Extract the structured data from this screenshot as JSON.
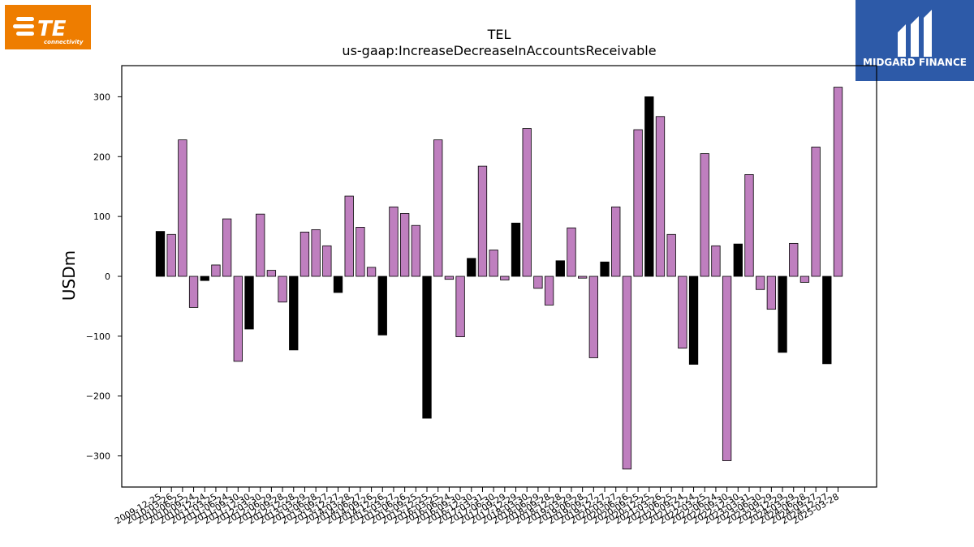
{
  "logos": {
    "left": {
      "text": "TE",
      "subtext": "connectivity",
      "bg": "#ee7d00"
    },
    "right": {
      "text": "MIDGARD FINANCE",
      "bg": "#2d5aa8"
    }
  },
  "chart_data": {
    "type": "bar",
    "title": "TEL",
    "subtitle": "us-gaap:IncreaseDecreaseInAccountsReceivable",
    "xlabel": "",
    "ylabel": "USDm",
    "ylim": [
      -352,
      352
    ],
    "yticks": [
      -300,
      -200,
      -100,
      0,
      100,
      200,
      300
    ],
    "grid": false,
    "colors": {
      "purple": "#bf7fbf",
      "black": "#000000"
    },
    "categories": [
      "2009-12-25",
      "2010-03-26",
      "2010-06-25",
      "2010-09-24",
      "2010-12-24",
      "2011-03-25",
      "2011-06-24",
      "2011-09-30",
      "2011-12-30",
      "2012-03-30",
      "2012-06-29",
      "2012-09-28",
      "2012-12-28",
      "2013-03-29",
      "2013-06-28",
      "2013-09-27",
      "2013-12-27",
      "2014-03-28",
      "2014-06-27",
      "2014-09-26",
      "2014-12-26",
      "2015-03-27",
      "2015-06-26",
      "2015-09-25",
      "2015-12-25",
      "2016-03-25",
      "2016-06-24",
      "2016-09-30",
      "2016-12-30",
      "2017-03-31",
      "2017-06-30",
      "2017-09-29",
      "2017-12-29",
      "2018-03-30",
      "2018-06-29",
      "2018-09-28",
      "2018-12-28",
      "2019-03-29",
      "2019-06-28",
      "2019-09-27",
      "2019-12-27",
      "2020-03-27",
      "2020-06-26",
      "2020-09-25",
      "2020-12-25",
      "2021-03-26",
      "2021-06-25",
      "2021-09-24",
      "2021-12-24",
      "2022-03-25",
      "2022-06-24",
      "2022-09-30",
      "2022-12-30",
      "2023-03-31",
      "2023-06-30",
      "2023-09-29",
      "2023-12-29",
      "2024-03-29",
      "2024-06-28",
      "2024-09-27",
      "2024-12-27",
      "2025-03-28"
    ],
    "values": [
      75,
      70,
      228,
      -52,
      -7,
      19,
      96,
      -142,
      -88,
      104,
      10,
      -43,
      -123,
      74,
      78,
      51,
      -27,
      134,
      82,
      15,
      -98,
      116,
      105,
      85,
      -237,
      228,
      -5,
      -101,
      30,
      184,
      44,
      -6,
      89,
      247,
      -20,
      -48,
      26,
      81,
      -3,
      -136,
      24,
      116,
      -322,
      245,
      300,
      267,
      70,
      -120,
      -147,
      205,
      51,
      -308,
      54,
      170,
      -22,
      -55,
      -127,
      55,
      -10,
      216,
      -146,
      316
    ],
    "bar_colors": [
      "black",
      "purple",
      "purple",
      "purple",
      "black",
      "purple",
      "purple",
      "purple",
      "black",
      "purple",
      "purple",
      "purple",
      "black",
      "purple",
      "purple",
      "purple",
      "black",
      "purple",
      "purple",
      "purple",
      "black",
      "purple",
      "purple",
      "purple",
      "black",
      "purple",
      "purple",
      "purple",
      "black",
      "purple",
      "purple",
      "purple",
      "black",
      "purple",
      "purple",
      "purple",
      "black",
      "purple",
      "purple",
      "purple",
      "black",
      "purple",
      "purple",
      "purple",
      "black",
      "purple",
      "purple",
      "purple",
      "black",
      "purple",
      "purple",
      "purple",
      "black",
      "purple",
      "purple",
      "purple",
      "black",
      "purple",
      "purple",
      "purple",
      "black",
      "purple"
    ]
  }
}
